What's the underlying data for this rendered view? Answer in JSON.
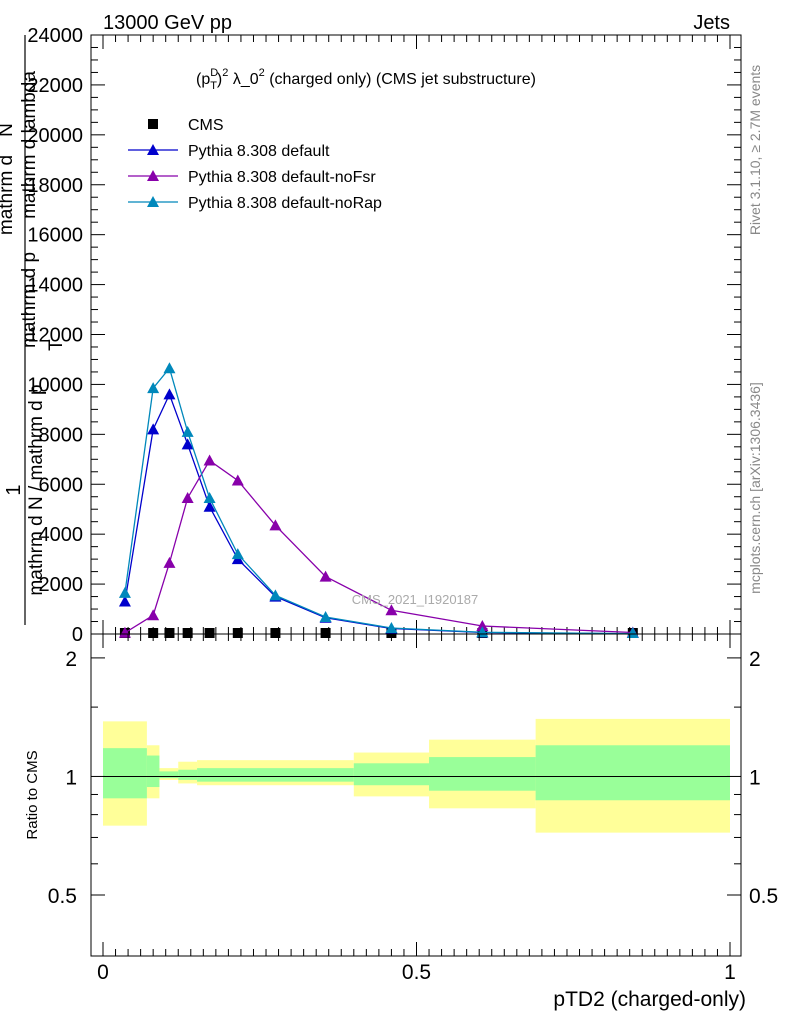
{
  "header": {
    "left": "13000 GeV pp",
    "right": "Jets"
  },
  "side": {
    "rivet": "Rivet 3.1.10, ≥ 2.7M events",
    "mcplots": "mcplots.cern.ch [arXiv:1306.3436]"
  },
  "watermark": "CMS_2021_I1920187",
  "chart_data": [
    {
      "type": "line",
      "title_parts": {
        "p": "(p",
        "sub": "T",
        "sup": "D",
        "rest": ")",
        "sup2": "2",
        "lambda": " λ_0",
        "sup3": "2",
        "tail": " (charged only) (CMS jet substructure)"
      },
      "ylabel_lines": [
        "1",
        "mathrm d N / mathrm d p",
        "mathrm d p",
        "mathrm d lambda",
        "mathrm d^2N"
      ],
      "ylabel_texts": {
        "one": "1",
        "fraction": "mathrm d N / mathrm d p",
        "sub_T": "T",
        "num": "mathrm d",
        "den": "mathrm d p",
        "dN": "mathrm d",
        "N": "N",
        "lambda": "mathrm d lambda"
      },
      "xlim": [
        0,
        1
      ],
      "ylim": [
        0,
        24000
      ],
      "yticks": [
        0,
        2000,
        4000,
        6000,
        8000,
        10000,
        12000,
        14000,
        16000,
        18000,
        20000,
        22000,
        24000
      ],
      "ytick_labels": [
        "0",
        "2000",
        "4000",
        "6000",
        "8000",
        "10000",
        "12000",
        "14000",
        "16000",
        "18000",
        "20000",
        "22000",
        "24000"
      ],
      "legend": {
        "placement": "top-left"
      },
      "series": [
        {
          "name": "CMS",
          "color": "#000000",
          "marker": "square",
          "line": false,
          "x": [
            0.035,
            0.08,
            0.106,
            0.135,
            0.17,
            0.215,
            0.275,
            0.355,
            0.46,
            0.605,
            0.845
          ],
          "y": [
            20,
            40,
            40,
            40,
            35,
            25,
            15,
            8,
            3,
            1,
            0.5
          ]
        },
        {
          "name": "Pythia 8.308 default",
          "color": "#0000cc",
          "marker": "triangle",
          "line": true,
          "x": [
            0.035,
            0.08,
            0.106,
            0.135,
            0.17,
            0.215,
            0.275,
            0.355,
            0.46,
            0.605,
            0.845
          ],
          "y": [
            1300,
            8200,
            9600,
            7600,
            5100,
            3000,
            1500,
            650,
            220,
            60,
            10
          ]
        },
        {
          "name": "Pythia 8.308 default-noFsr",
          "color": "#8800aa",
          "marker": "triangle",
          "line": true,
          "x": [
            0.035,
            0.08,
            0.106,
            0.135,
            0.17,
            0.215,
            0.275,
            0.355,
            0.46,
            0.605,
            0.845
          ],
          "y": [
            50,
            750,
            2850,
            5450,
            6950,
            6150,
            4350,
            2300,
            950,
            320,
            60
          ]
        },
        {
          "name": "Pythia 8.308 default-noRap",
          "color": "#0088bb",
          "marker": "triangle",
          "line": true,
          "x": [
            0.035,
            0.08,
            0.106,
            0.135,
            0.17,
            0.215,
            0.275,
            0.355,
            0.46,
            0.605,
            0.845
          ],
          "y": [
            1650,
            9850,
            10650,
            8100,
            5450,
            3200,
            1550,
            680,
            240,
            70,
            12
          ]
        }
      ]
    },
    {
      "type": "area",
      "ylabel": "Ratio to CMS",
      "xlabel": "pTD2 (charged-only)",
      "xlim": [
        0,
        1
      ],
      "ylim": [
        0.35,
        2.3
      ],
      "yticks": [
        0.5,
        1,
        2
      ],
      "ytick_labels": [
        "0.5",
        "1",
        "2"
      ],
      "xticks": [
        0,
        0.5,
        1
      ],
      "xtick_labels": [
        "0",
        "0.5",
        "1"
      ],
      "band_colors": {
        "outer": "#ffff99",
        "inner": "#99ff99"
      },
      "bins": [
        {
          "lo": 0.0,
          "hi": 0.07,
          "outer": [
            0.75,
            1.38
          ],
          "inner": [
            0.88,
            1.18
          ]
        },
        {
          "lo": 0.07,
          "hi": 0.09,
          "outer": [
            0.88,
            1.2
          ],
          "inner": [
            0.94,
            1.13
          ]
        },
        {
          "lo": 0.09,
          "hi": 0.12,
          "outer": [
            0.98,
            1.05
          ],
          "inner": [
            0.99,
            1.03
          ]
        },
        {
          "lo": 0.12,
          "hi": 0.15,
          "outer": [
            0.96,
            1.09
          ],
          "inner": [
            0.98,
            1.04
          ]
        },
        {
          "lo": 0.15,
          "hi": 0.4,
          "outer": [
            0.95,
            1.1
          ],
          "inner": [
            0.97,
            1.05
          ]
        },
        {
          "lo": 0.4,
          "hi": 0.52,
          "outer": [
            0.89,
            1.15
          ],
          "inner": [
            0.95,
            1.08
          ]
        },
        {
          "lo": 0.52,
          "hi": 0.69,
          "outer": [
            0.83,
            1.24
          ],
          "inner": [
            0.92,
            1.12
          ]
        },
        {
          "lo": 0.69,
          "hi": 1.0,
          "outer": [
            0.72,
            1.4
          ],
          "inner": [
            0.87,
            1.2
          ]
        }
      ],
      "reference_line": 1
    }
  ]
}
